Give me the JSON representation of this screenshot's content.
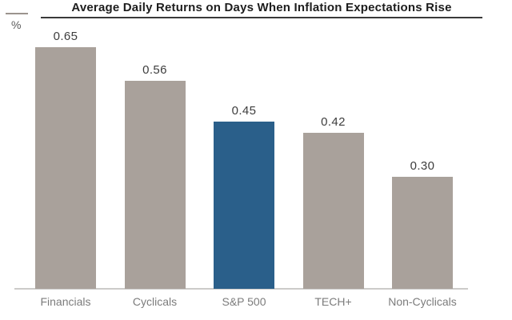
{
  "header": {
    "title": "Average Daily Returns on Days When Inflation Expectations Rise"
  },
  "axis": {
    "unit_label": "%"
  },
  "chart_data": {
    "type": "bar",
    "title": "Average Daily Returns on Days When Inflation Expectations Rise",
    "categories": [
      "Financials",
      "Cyclicals",
      "S&P 500",
      "TECH+",
      "Non-Cyclicals"
    ],
    "values": [
      0.65,
      0.56,
      0.45,
      0.42,
      0.3
    ],
    "value_labels": [
      "0.65",
      "0.56",
      "0.45",
      "0.42",
      "0.30"
    ],
    "xlabel": "",
    "ylabel": "%",
    "ylim": [
      0,
      0.7
    ],
    "grid": false,
    "legend": false,
    "data_labels": true,
    "highlighted_category": "S&P 500",
    "bar_colors": [
      "#a9a19b",
      "#a9a19b",
      "#2a5f8a",
      "#a9a19b",
      "#a9a19b"
    ],
    "colors": {
      "default_bar": "#a9a19b",
      "highlight_bar": "#2a5f8a",
      "baseline": "#cccbc9",
      "title_text": "#1d1d1d",
      "title_underline": "#3a3a3a",
      "value_label": "#3d3d3d",
      "category_label": "#7c7c7c",
      "unit_label": "#5a5a5a"
    }
  }
}
